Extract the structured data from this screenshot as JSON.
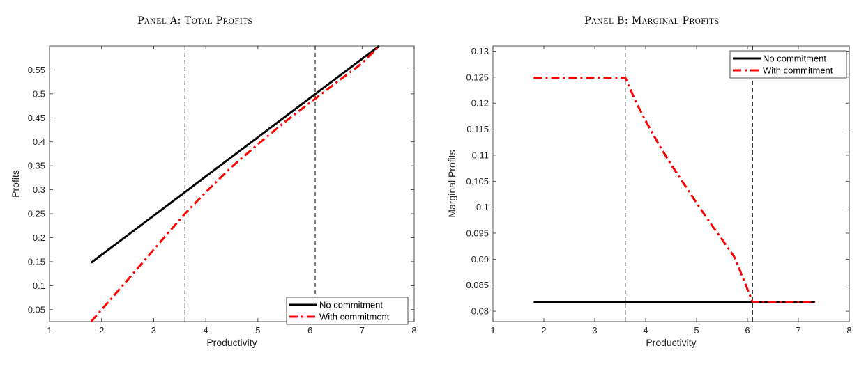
{
  "chart_data": [
    {
      "type": "line",
      "title": "Panel A: Total Profits",
      "xlabel": "Productivity",
      "ylabel": "Profits",
      "xlim": [
        1,
        8
      ],
      "ylim": [
        0.025,
        0.6
      ],
      "xticks": [
        1,
        2,
        3,
        4,
        5,
        6,
        7,
        8
      ],
      "yticks": [
        0.05,
        0.1,
        0.15,
        0.2,
        0.25,
        0.3,
        0.35,
        0.4,
        0.45,
        0.5,
        0.55
      ],
      "ytick_labels": [
        "0.05",
        "0.1",
        "0.15",
        "0.2",
        "0.25",
        "0.3",
        "0.35",
        "0.4",
        "0.45",
        "0.5",
        "0.55"
      ],
      "vlines": [
        3.6,
        6.1
      ],
      "legend_position": "bottom-right",
      "grid": false,
      "series": [
        {
          "name": "No commitment",
          "color": "#000000",
          "style": "solid",
          "x": [
            1.8,
            7.33
          ],
          "y": [
            0.148,
            0.6
          ]
        },
        {
          "name": "With commitment",
          "color": "#ff0000",
          "style": "dashdot",
          "x": [
            1.8,
            2.5,
            3.0,
            3.6,
            4.0,
            4.5,
            5.0,
            5.5,
            6.1,
            6.5,
            7.0,
            7.33
          ],
          "y": [
            0.025,
            0.112,
            0.175,
            0.25,
            0.295,
            0.348,
            0.395,
            0.44,
            0.49,
            0.523,
            0.564,
            0.6
          ]
        }
      ]
    },
    {
      "type": "line",
      "title": "Panel B: Marginal Profits",
      "xlabel": "Productivity",
      "ylabel": "Marginal Profits",
      "xlim": [
        1,
        8
      ],
      "ylim": [
        0.078,
        0.131
      ],
      "xticks": [
        1,
        2,
        3,
        4,
        5,
        6,
        7,
        8
      ],
      "yticks": [
        0.08,
        0.085,
        0.09,
        0.095,
        0.1,
        0.105,
        0.11,
        0.115,
        0.12,
        0.125,
        0.13
      ],
      "ytick_labels": [
        "0.08",
        "0.085",
        "0.09",
        "0.095",
        "0.1",
        "0.105",
        "0.11",
        "0.115",
        "0.12",
        "0.125",
        "0.13"
      ],
      "vlines": [
        3.6,
        6.1
      ],
      "legend_position": "top-right",
      "grid": false,
      "series": [
        {
          "name": "No commitment",
          "color": "#000000",
          "style": "solid",
          "x": [
            1.8,
            7.33
          ],
          "y": [
            0.0818,
            0.0818
          ]
        },
        {
          "name": "With commitment",
          "color": "#ff0000",
          "style": "dashdot",
          "x": [
            1.8,
            3.6,
            3.8,
            4.0,
            4.25,
            4.5,
            4.75,
            5.0,
            5.25,
            5.5,
            5.75,
            6.1,
            7.33
          ],
          "y": [
            0.1249,
            0.1249,
            0.1204,
            0.1166,
            0.1122,
            0.1082,
            0.1045,
            0.1008,
            0.0972,
            0.0938,
            0.0903,
            0.0818,
            0.0818
          ]
        }
      ]
    }
  ]
}
